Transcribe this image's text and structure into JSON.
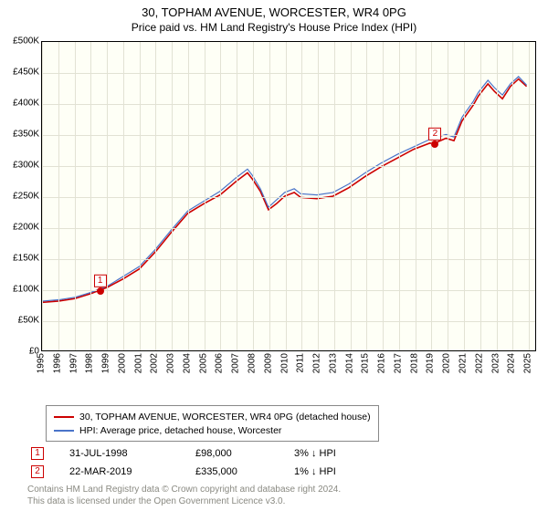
{
  "title": "30, TOPHAM AVENUE, WORCESTER, WR4 0PG",
  "subtitle": "Price paid vs. HM Land Registry's House Price Index (HPI)",
  "chart": {
    "type": "line",
    "background_color": "#fefff6",
    "grid_color": "#e2e2d4",
    "border_color": "#000000",
    "x_years": [
      1995,
      1996,
      1997,
      1998,
      1999,
      2000,
      2001,
      2002,
      2003,
      2004,
      2005,
      2006,
      2007,
      2008,
      2009,
      2010,
      2011,
      2012,
      2013,
      2014,
      2015,
      2016,
      2017,
      2018,
      2019,
      2020,
      2021,
      2022,
      2023,
      2024,
      2025
    ],
    "x_min": 1995,
    "x_max": 2025.5,
    "y_ticks": [
      0,
      50000,
      100000,
      150000,
      200000,
      250000,
      300000,
      350000,
      400000,
      450000,
      500000
    ],
    "y_tick_labels": [
      "£0",
      "£50K",
      "£100K",
      "£150K",
      "£200K",
      "£250K",
      "£300K",
      "£350K",
      "£400K",
      "£450K",
      "£500K"
    ],
    "y_min": 0,
    "y_max": 500000,
    "tick_fontsize": 10,
    "series": [
      {
        "name": "30, TOPHAM AVENUE, WORCESTER, WR4 0PG (detached house)",
        "color": "#cc0000",
        "line_width": 1.6,
        "points": [
          [
            1995,
            78000
          ],
          [
            1996,
            80000
          ],
          [
            1997,
            84000
          ],
          [
            1998,
            92000
          ],
          [
            1998.58,
            98000
          ],
          [
            1999,
            102000
          ],
          [
            2000,
            116000
          ],
          [
            2001,
            132000
          ],
          [
            2002,
            160000
          ],
          [
            2003,
            192000
          ],
          [
            2004,
            222000
          ],
          [
            2005,
            238000
          ],
          [
            2006,
            252000
          ],
          [
            2007,
            274000
          ],
          [
            2007.7,
            288000
          ],
          [
            2008,
            278000
          ],
          [
            2008.5,
            258000
          ],
          [
            2009,
            228000
          ],
          [
            2009.5,
            238000
          ],
          [
            2010,
            250000
          ],
          [
            2010.6,
            256000
          ],
          [
            2011,
            248000
          ],
          [
            2012,
            246000
          ],
          [
            2013,
            250000
          ],
          [
            2014,
            264000
          ],
          [
            2015,
            282000
          ],
          [
            2016,
            298000
          ],
          [
            2017,
            312000
          ],
          [
            2018,
            326000
          ],
          [
            2019,
            336000
          ],
          [
            2019.22,
            335000
          ],
          [
            2020,
            344000
          ],
          [
            2020.5,
            340000
          ],
          [
            2021,
            372000
          ],
          [
            2021.7,
            398000
          ],
          [
            2022,
            412000
          ],
          [
            2022.6,
            432000
          ],
          [
            2023,
            420000
          ],
          [
            2023.5,
            408000
          ],
          [
            2024,
            428000
          ],
          [
            2024.5,
            440000
          ],
          [
            2025,
            428000
          ]
        ]
      },
      {
        "name": "HPI: Average price, detached house, Worcester",
        "color": "#4a74c9",
        "line_width": 1.2,
        "points": [
          [
            1995,
            80000
          ],
          [
            1996,
            82000
          ],
          [
            1997,
            86000
          ],
          [
            1998,
            94000
          ],
          [
            1999,
            104000
          ],
          [
            2000,
            120000
          ],
          [
            2001,
            136000
          ],
          [
            2002,
            164000
          ],
          [
            2003,
            196000
          ],
          [
            2004,
            226000
          ],
          [
            2005,
            242000
          ],
          [
            2006,
            258000
          ],
          [
            2007,
            280000
          ],
          [
            2007.7,
            294000
          ],
          [
            2008,
            284000
          ],
          [
            2008.5,
            262000
          ],
          [
            2009,
            232000
          ],
          [
            2009.5,
            244000
          ],
          [
            2010,
            256000
          ],
          [
            2010.6,
            262000
          ],
          [
            2011,
            254000
          ],
          [
            2012,
            252000
          ],
          [
            2013,
            256000
          ],
          [
            2014,
            270000
          ],
          [
            2015,
            288000
          ],
          [
            2016,
            304000
          ],
          [
            2017,
            318000
          ],
          [
            2018,
            330000
          ],
          [
            2019,
            342000
          ],
          [
            2020,
            350000
          ],
          [
            2020.5,
            346000
          ],
          [
            2021,
            378000
          ],
          [
            2021.7,
            404000
          ],
          [
            2022,
            418000
          ],
          [
            2022.6,
            438000
          ],
          [
            2023,
            426000
          ],
          [
            2023.5,
            414000
          ],
          [
            2024,
            432000
          ],
          [
            2024.5,
            444000
          ],
          [
            2025,
            430000
          ]
        ]
      }
    ],
    "sale_markers": [
      {
        "label": "1",
        "x": 1998.58,
        "y": 98000
      },
      {
        "label": "2",
        "x": 2019.22,
        "y": 335000
      }
    ]
  },
  "legend": {
    "items": [
      {
        "color": "#cc0000",
        "label": "30, TOPHAM AVENUE, WORCESTER, WR4 0PG (detached house)"
      },
      {
        "color": "#4a74c9",
        "label": "HPI: Average price, detached house, Worcester"
      }
    ]
  },
  "sales": [
    {
      "marker": "1",
      "date": "31-JUL-1998",
      "price": "£98,000",
      "delta": "3% ↓ HPI"
    },
    {
      "marker": "2",
      "date": "22-MAR-2019",
      "price": "£335,000",
      "delta": "1% ↓ HPI"
    }
  ],
  "footer_line1": "Contains HM Land Registry data © Crown copyright and database right 2024.",
  "footer_line2": "This data is licensed under the Open Government Licence v3.0.",
  "colors": {
    "marker_border": "#cc0000",
    "footer_text": "#8a8a82"
  }
}
